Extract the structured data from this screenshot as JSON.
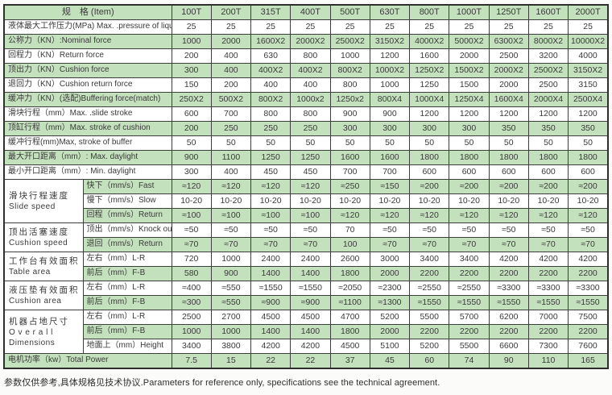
{
  "header": {
    "item_label": "规　格 (Item)",
    "columns": [
      "100T",
      "200T",
      "315T",
      "400T",
      "500T",
      "630T",
      "800T",
      "1000T",
      "1250T",
      "1600T",
      "2000T"
    ]
  },
  "rows": [
    {
      "label": "液体最大工作压力(MPa) Max. .pressure of liquid",
      "values": [
        "25",
        "25",
        "25",
        "25",
        "25",
        "25",
        "25",
        "25",
        "25",
        "25",
        "25"
      ]
    },
    {
      "label": "公称力（KN）:Nominal force",
      "values": [
        "1000",
        "2000",
        "1600X2",
        "2000X2",
        "2500X2",
        "3150X2",
        "4000X2",
        "5000X2",
        "6300X2",
        "8000X2",
        "10000X2"
      ]
    },
    {
      "label": "回程力（KN）Return force",
      "values": [
        "200",
        "400",
        "630",
        "800",
        "1000",
        "1200",
        "1600",
        "2000",
        "2500",
        "3200",
        "4000"
      ]
    },
    {
      "label": "顶出力（KN）Cushion force",
      "values": [
        "300",
        "400",
        "400X2",
        "400X2",
        "800X2",
        "1000X2",
        "1250X2",
        "1500X2",
        "2000X2",
        "2500X2",
        "3150X2"
      ]
    },
    {
      "label": "退回力（KN）Cushion return force",
      "values": [
        "150",
        "200",
        "400",
        "400",
        "800",
        "1000",
        "1250",
        "1500",
        "2000",
        "2500",
        "3150"
      ]
    },
    {
      "label": "缓冲力（KN）(选配)Buffering force(match)",
      "values": [
        "250X2",
        "500X2",
        "800X2",
        "1000x2",
        "1250x2",
        "800X4",
        "1000X4",
        "1250X4",
        "1600X4",
        "2000X4",
        "2500X4"
      ]
    },
    {
      "label": "滑块行程（mm）Max. .slide stroke",
      "values": [
        "600",
        "700",
        "800",
        "800",
        "900",
        "900",
        "1200",
        "1200",
        "1200",
        "1200",
        "1200"
      ]
    },
    {
      "label": "顶缸行程（mm）Max. stroke of cushion",
      "values": [
        "200",
        "250",
        "250",
        "250",
        "300",
        "300",
        "300",
        "300",
        "350",
        "350",
        "350"
      ]
    },
    {
      "label": "缓冲行程(mm)Max, stroke of buffer",
      "values": [
        "50",
        "50",
        "50",
        "50",
        "50",
        "50",
        "50",
        "50",
        "50",
        "50",
        "50"
      ]
    },
    {
      "label": "最大开口距离（mm）: Max. daylight",
      "values": [
        "900",
        "1100",
        "1250",
        "1250",
        "1600",
        "1600",
        "1800",
        "1800",
        "1800",
        "1800",
        "1800"
      ]
    },
    {
      "label": "最小开口距离（mm）: Min. daylight",
      "values": [
        "300",
        "400",
        "450",
        "450",
        "700",
        "700",
        "600",
        "600",
        "600",
        "600",
        "600"
      ]
    },
    {
      "group": {
        "lines": [
          "滑块行程速度",
          "Slide speed"
        ],
        "span": 3
      },
      "sublabel": "快下（mm/s）Fast",
      "values": [
        "≈120",
        "≈120",
        "≈120",
        "≈120",
        "≈250",
        "≈150",
        "≈200",
        "≈200",
        "≈200",
        "≈200",
        "≈200"
      ]
    },
    {
      "sublabel": "慢下（mm/s）Slow",
      "values": [
        "10-20",
        "10-20",
        "10-20",
        "10-20",
        "10-20",
        "10-20",
        "10-20",
        "10-20",
        "10-20",
        "10-20",
        "10-20"
      ]
    },
    {
      "sublabel": "回程（mm/s）Return",
      "values": [
        "≈100",
        "≈100",
        "≈100",
        "≈100",
        "≈120",
        "≈120",
        "≈120",
        "≈120",
        "≈120",
        "≈120",
        "≈120"
      ]
    },
    {
      "group": {
        "lines": [
          "顶出活塞速度",
          "Cushion speed"
        ],
        "span": 2
      },
      "sublabel": "顶出（mm/s）Knock out",
      "values": [
        "≈50",
        "≈50",
        "≈50",
        "≈50",
        "70",
        "≈50",
        "≈50",
        "≈50",
        "≈50",
        "≈50",
        "≈50"
      ]
    },
    {
      "sublabel": "退回（mm/s）Return",
      "values": [
        "≈70",
        "≈70",
        "≈70",
        "≈70",
        "100",
        "≈70",
        "≈70",
        "≈70",
        "≈70",
        "≈70",
        "≈70"
      ]
    },
    {
      "group": {
        "lines": [
          "工作台有效面积",
          "Table area"
        ],
        "span": 2
      },
      "sublabel": "左右（mm）L-R",
      "values": [
        "720",
        "1000",
        "2400",
        "2400",
        "2600",
        "3000",
        "3400",
        "3400",
        "4200",
        "4200",
        "4200"
      ]
    },
    {
      "sublabel": "前后（mm）F-B",
      "values": [
        "580",
        "900",
        "1400",
        "1400",
        "1800",
        "2000",
        "2200",
        "2200",
        "2200",
        "2200",
        "2200"
      ]
    },
    {
      "group": {
        "lines": [
          "液压垫有效面积",
          "Cushion area"
        ],
        "span": 2
      },
      "sublabel": "左右（mm）L-R",
      "values": [
        "≈400",
        "≈550",
        "≈1550",
        "≈1550",
        "≈2050",
        "≈2300",
        "≈2550",
        "≈2550",
        "≈3300",
        "≈3300",
        "≈3300"
      ]
    },
    {
      "sublabel": "前后（mm）F-B",
      "values": [
        "≈300",
        "≈550",
        "≈900",
        "≈900",
        "≈1100",
        "≈1300",
        "≈1550",
        "≈1550",
        "≈1550",
        "≈1550",
        "≈1550"
      ]
    },
    {
      "group": {
        "lines": [
          "机器占地尺寸",
          "O v e r a l l",
          "Dimensions"
        ],
        "span": 3
      },
      "sublabel": "左右（mm）L-R",
      "values": [
        "2500",
        "2700",
        "4500",
        "4500",
        "4700",
        "5200",
        "5500",
        "5700",
        "6200",
        "7000",
        "7500"
      ]
    },
    {
      "sublabel": "前后（mm）F-B",
      "values": [
        "1000",
        "1000",
        "1400",
        "1400",
        "1800",
        "2000",
        "2200",
        "2200",
        "2200",
        "2200",
        "2200"
      ]
    },
    {
      "sublabel": "地面上（mm）Height",
      "values": [
        "3400",
        "3800",
        "4200",
        "4200",
        "4500",
        "5100",
        "5200",
        "5500",
        "6600",
        "7300",
        "7600"
      ]
    },
    {
      "label": "电机功率（kw）Total Power",
      "values": [
        "7.5",
        "15",
        "22",
        "22",
        "37",
        "45",
        "60",
        "74",
        "90",
        "110",
        "165"
      ]
    }
  ],
  "footer": {
    "note": "参数仅供参考,具体规格见技术协议.Parameters for reference only, specifications see the technical agreement."
  },
  "colors": {
    "row_green": "#c4e1bd",
    "row_white": "#ffffff",
    "border": "#3d3d3d",
    "border_outer": "#2e2e2e",
    "text": "#3a3a3a"
  }
}
